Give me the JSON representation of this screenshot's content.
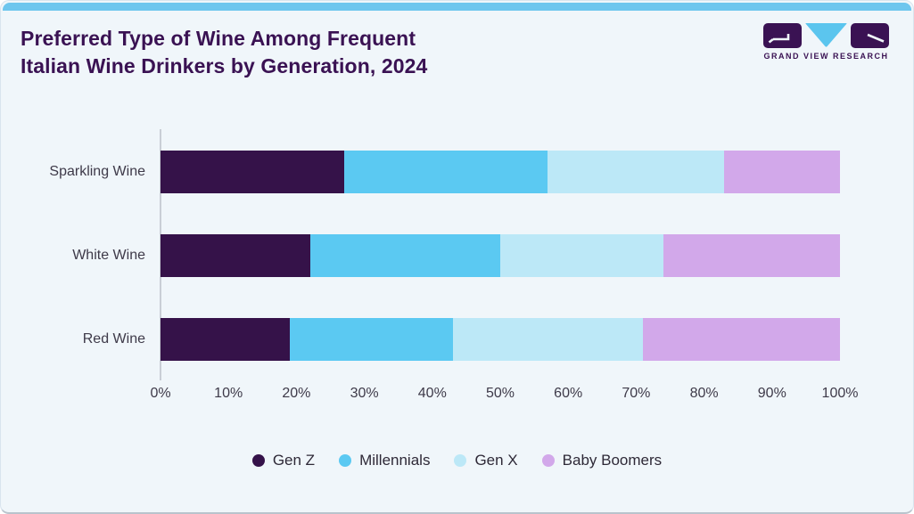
{
  "header": {
    "title_line1": "Preferred Type of Wine Among Frequent",
    "title_line2": "Italian Wine Drinkers by Generation, 2024",
    "logo_text": "GRAND VIEW RESEARCH"
  },
  "colors": {
    "accent_bar": "#6EC6EE",
    "card_background": "#F0F6FA",
    "title_text": "#3A1253",
    "axis_text": "#3E3A49",
    "axis_line": "#C9CED6",
    "legend_text": "#2E2937"
  },
  "chart_data": {
    "type": "bar",
    "orientation": "horizontal",
    "stacked": true,
    "title": "Preferred Type of Wine Among Frequent Italian Wine Drinkers by Generation, 2024",
    "categories": [
      "Sparkling Wine",
      "White Wine",
      "Red Wine"
    ],
    "series": [
      {
        "name": "Gen Z",
        "color": "#351249",
        "values": [
          27,
          22,
          19
        ]
      },
      {
        "name": "Millennials",
        "color": "#5BC9F2",
        "values": [
          30,
          28,
          24
        ]
      },
      {
        "name": "Gen X",
        "color": "#BCE8F7",
        "values": [
          26,
          24,
          28
        ]
      },
      {
        "name": "Baby Boomers",
        "color": "#D2A8EA",
        "values": [
          17,
          26,
          29
        ]
      }
    ],
    "x_ticks": [
      "0%",
      "10%",
      "20%",
      "30%",
      "40%",
      "50%",
      "60%",
      "70%",
      "80%",
      "90%",
      "100%"
    ],
    "xlim": [
      0,
      100
    ],
    "xlabel": "",
    "ylabel": "",
    "grid": false,
    "legend_position": "bottom"
  }
}
